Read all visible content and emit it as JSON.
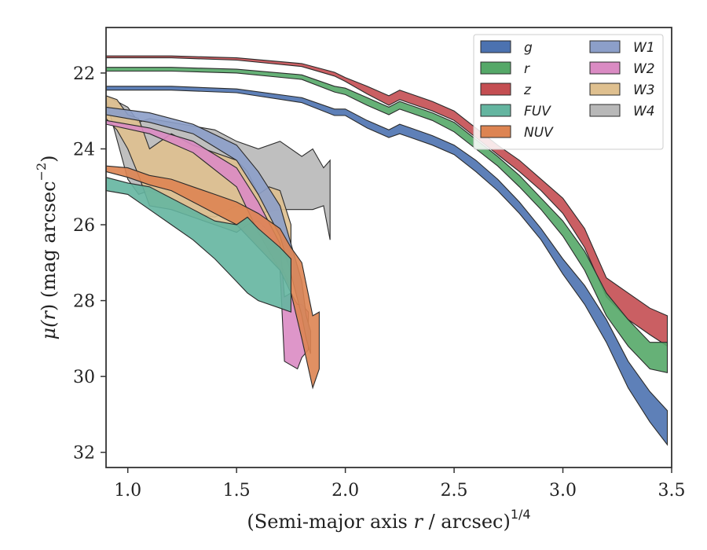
{
  "chart_data": {
    "type": "area",
    "xlabel": "(Semi-major axis r / arcsec)",
    "xlabel_parts": {
      "pre": "(Semi-major axis ",
      "var": "r",
      "post": " / arcsec)",
      "sup": "1/4"
    },
    "ylabel_parts": {
      "mu": "μ(",
      "var": "r",
      "mid": ") (mag arcsec",
      "sup": "−2",
      "end": ")"
    },
    "xlim": [
      0.9,
      3.5
    ],
    "ylim": [
      32.4,
      20.8
    ],
    "y_inverted": true,
    "xticks": [
      1.0,
      1.5,
      2.0,
      2.5,
      3.0,
      3.5
    ],
    "xtick_labels": [
      "1.0",
      "1.5",
      "2.0",
      "2.5",
      "3.0",
      "3.5"
    ],
    "yticks": [
      22,
      24,
      26,
      28,
      30,
      32
    ],
    "ytick_labels": [
      "22",
      "24",
      "26",
      "28",
      "30",
      "32"
    ],
    "grid": false,
    "legend_position": "top-right",
    "legend_columns": 2,
    "series": [
      {
        "name": "g",
        "color": "#4c72b0",
        "x": [
          0.9,
          1.2,
          1.5,
          1.8,
          1.95,
          2.0,
          2.1,
          2.2,
          2.25,
          2.3,
          2.4,
          2.5,
          2.6,
          2.7,
          2.8,
          2.9,
          3.0,
          3.1,
          3.2,
          3.3,
          3.4,
          3.48
        ],
        "lo": [
          22.35,
          22.35,
          22.42,
          22.65,
          22.95,
          22.95,
          23.25,
          23.5,
          23.35,
          23.45,
          23.65,
          23.9,
          24.3,
          24.8,
          25.4,
          26.1,
          26.9,
          27.6,
          28.5,
          29.6,
          30.4,
          30.9
        ],
        "hi": [
          22.45,
          22.45,
          22.52,
          22.78,
          23.12,
          23.12,
          23.45,
          23.7,
          23.6,
          23.7,
          23.9,
          24.15,
          24.6,
          25.1,
          25.7,
          26.4,
          27.3,
          28.1,
          29.1,
          30.3,
          31.2,
          31.8
        ]
      },
      {
        "name": "r",
        "color": "#55a868",
        "x": [
          0.9,
          1.2,
          1.5,
          1.8,
          1.95,
          2.0,
          2.1,
          2.2,
          2.25,
          2.3,
          2.4,
          2.5,
          2.6,
          2.7,
          2.8,
          2.9,
          3.0,
          3.1,
          3.2,
          3.3,
          3.4,
          3.48
        ],
        "lo": [
          21.85,
          21.85,
          21.9,
          22.05,
          22.35,
          22.4,
          22.65,
          22.9,
          22.75,
          22.85,
          23.05,
          23.3,
          23.75,
          24.2,
          24.7,
          25.3,
          25.9,
          26.7,
          27.8,
          28.5,
          29.1,
          29.1
        ],
        "hi": [
          21.95,
          21.95,
          22.0,
          22.17,
          22.5,
          22.57,
          22.85,
          23.1,
          22.95,
          23.05,
          23.25,
          23.55,
          24.0,
          24.45,
          25.0,
          25.6,
          26.3,
          27.2,
          28.4,
          29.2,
          29.8,
          29.9
        ]
      },
      {
        "name": "z",
        "color": "#c44e52",
        "x": [
          0.9,
          1.2,
          1.5,
          1.8,
          1.95,
          2.0,
          2.1,
          2.2,
          2.25,
          2.3,
          2.4,
          2.5,
          2.6,
          2.7,
          2.8,
          2.9,
          3.0,
          3.1,
          3.2,
          3.3,
          3.4,
          3.48
        ],
        "lo": [
          21.55,
          21.55,
          21.6,
          21.75,
          21.98,
          22.12,
          22.35,
          22.6,
          22.45,
          22.55,
          22.75,
          23.0,
          23.45,
          23.9,
          24.3,
          24.8,
          25.3,
          26.1,
          27.4,
          27.8,
          28.2,
          28.4
        ],
        "hi": [
          21.6,
          21.6,
          21.66,
          21.83,
          22.08,
          22.22,
          22.55,
          22.85,
          22.7,
          22.8,
          23.0,
          23.25,
          23.7,
          24.15,
          24.6,
          25.1,
          25.7,
          26.6,
          27.9,
          28.5,
          28.9,
          29.2
        ]
      },
      {
        "name": "FUV",
        "color": "#64b5a0",
        "x": [
          0.9,
          1.0,
          1.1,
          1.2,
          1.3,
          1.4,
          1.5,
          1.55,
          1.6,
          1.7,
          1.75
        ],
        "lo": [
          24.75,
          24.9,
          25.0,
          25.3,
          25.6,
          25.9,
          26.0,
          25.8,
          26.1,
          26.6,
          26.9
        ],
        "hi": [
          25.1,
          25.2,
          25.6,
          26.0,
          26.4,
          26.9,
          27.5,
          27.8,
          28.0,
          28.2,
          28.3
        ]
      },
      {
        "name": "NUV",
        "color": "#dd8452",
        "x": [
          0.9,
          1.0,
          1.1,
          1.2,
          1.3,
          1.4,
          1.5,
          1.6,
          1.7,
          1.75,
          1.8,
          1.85,
          1.88
        ],
        "lo": [
          24.45,
          24.5,
          24.7,
          24.8,
          25.0,
          25.2,
          25.4,
          25.7,
          26.1,
          26.6,
          27.0,
          28.4,
          28.3
        ],
        "hi": [
          24.6,
          24.75,
          24.95,
          25.1,
          25.4,
          25.7,
          26.0,
          26.6,
          27.2,
          27.8,
          29.0,
          30.3,
          29.8
        ]
      },
      {
        "name": "W1",
        "color": "#8c9fc9",
        "x": [
          0.9,
          1.1,
          1.3,
          1.5,
          1.6,
          1.7,
          1.75,
          1.8,
          1.82,
          1.84
        ],
        "lo": [
          22.9,
          23.05,
          23.35,
          23.9,
          24.6,
          25.5,
          26.5,
          27.5,
          28.4,
          28.8
        ],
        "hi": [
          23.1,
          23.3,
          23.6,
          24.3,
          25.2,
          26.3,
          27.3,
          28.4,
          29.0,
          29.4
        ]
      },
      {
        "name": "W2",
        "color": "#da8bc3",
        "x": [
          0.9,
          1.1,
          1.3,
          1.5,
          1.6,
          1.7,
          1.72,
          1.75,
          1.78,
          1.8,
          1.83
        ],
        "lo": [
          23.25,
          23.45,
          23.8,
          24.5,
          25.4,
          26.5,
          27.9,
          27.8,
          28.1,
          28.1,
          28.3
        ],
        "hi": [
          23.35,
          23.6,
          24.1,
          25.0,
          26.2,
          27.2,
          29.6,
          29.7,
          29.8,
          29.5,
          29.3
        ]
      },
      {
        "name": "W3",
        "color": "#dfc08f",
        "x": [
          0.9,
          0.95,
          1.0,
          1.05,
          1.1,
          1.2,
          1.3,
          1.4,
          1.5,
          1.55,
          1.6,
          1.65,
          1.7,
          1.75
        ],
        "lo": [
          22.6,
          22.7,
          23.1,
          23.2,
          24.0,
          23.6,
          23.9,
          24.1,
          24.3,
          24.6,
          25.2,
          25.0,
          25.1,
          26.0
        ],
        "hi": [
          23.2,
          23.5,
          24.0,
          24.7,
          25.5,
          25.6,
          25.8,
          26.0,
          26.2,
          26.0,
          25.9,
          26.2,
          27.0,
          27.7
        ]
      },
      {
        "name": "W4",
        "color": "#b8b8b8",
        "x": [
          0.9,
          1.0,
          1.05,
          1.1,
          1.2,
          1.3,
          1.4,
          1.5,
          1.6,
          1.7,
          1.8,
          1.85,
          1.9,
          1.93
        ],
        "lo": [
          22.6,
          22.9,
          23.3,
          23.2,
          23.3,
          23.4,
          23.5,
          23.8,
          24.0,
          23.8,
          24.2,
          24.0,
          24.5,
          24.3
        ],
        "hi": [
          22.7,
          24.8,
          25.2,
          25.1,
          25.3,
          25.7,
          25.8,
          25.5,
          25.7,
          25.6,
          25.6,
          25.6,
          25.5,
          26.4
        ]
      }
    ]
  }
}
